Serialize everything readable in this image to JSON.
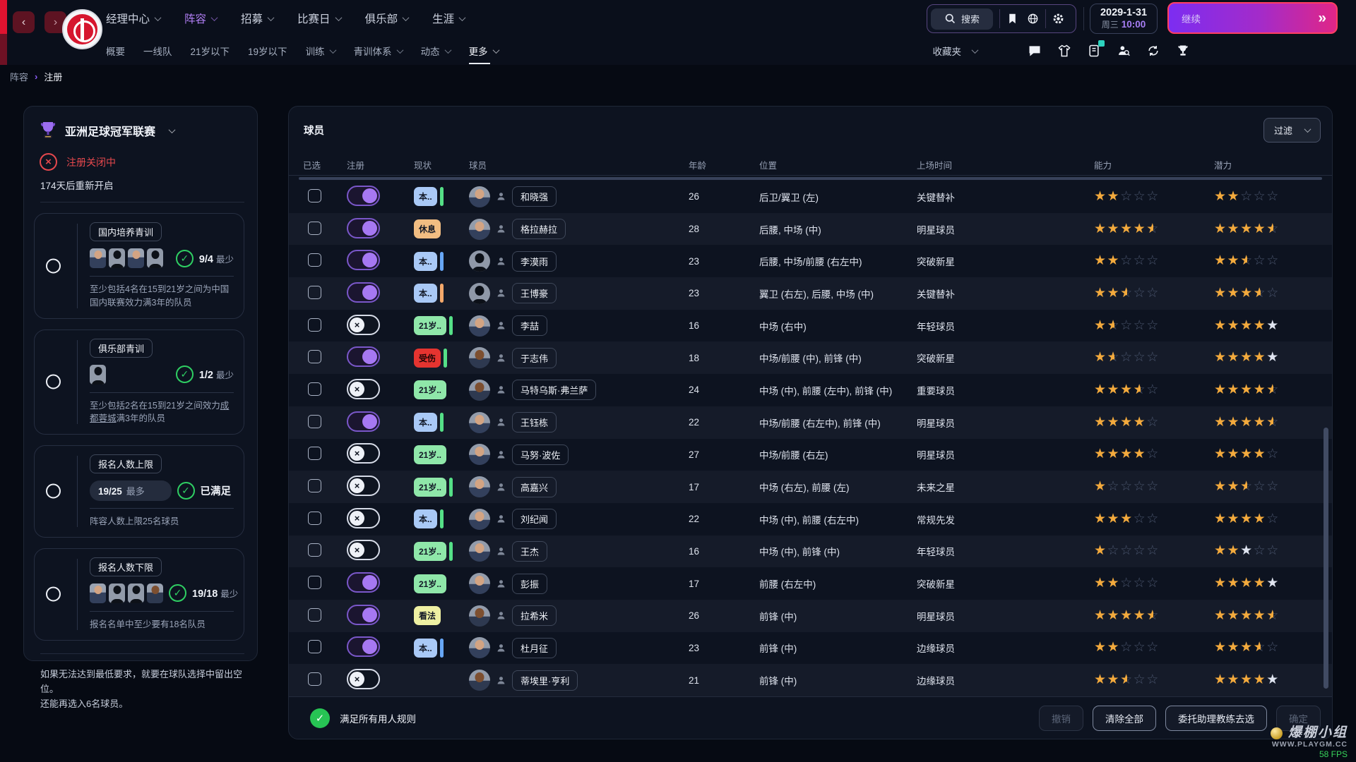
{
  "topbar": {
    "nav": [
      {
        "label": "经理中心"
      },
      {
        "label": "阵容",
        "active": true
      },
      {
        "label": "招募"
      },
      {
        "label": "比赛日"
      },
      {
        "label": "俱乐部"
      },
      {
        "label": "生涯"
      }
    ],
    "subnav": [
      {
        "label": "概要"
      },
      {
        "label": "一线队"
      },
      {
        "label": "21岁以下"
      },
      {
        "label": "19岁以下"
      },
      {
        "label": "训练",
        "chev": true
      },
      {
        "label": "青训体系",
        "chev": true
      },
      {
        "label": "动态",
        "chev": true
      },
      {
        "label": "更多",
        "chev": true,
        "active": true
      }
    ],
    "search_label": "搜索",
    "icons": [
      "search-icon",
      "bookmark-icon",
      "globe-icon",
      "gear-icon"
    ],
    "date": {
      "line1": "2029-1-31",
      "day": "周三",
      "time": "10:00"
    },
    "continue_label": "继续",
    "continue_glyph": "»",
    "favorites_label": "收藏夹",
    "corner_icons": [
      "chat-icon",
      "jersey-icon",
      "news-icon",
      "scout-search-icon",
      "sync-icon",
      "trophy-icon"
    ]
  },
  "breadcrumb": {
    "first": "阵容",
    "second": "注册"
  },
  "sidebar": {
    "competition": "亚洲足球冠军联赛",
    "closed_status": "注册关闭中",
    "reopen": "174天后重新开启",
    "rules": [
      {
        "label": "国内培养青训",
        "type": "avatars",
        "avatars": [
          "light",
          "silhouette",
          "light",
          "silhouette"
        ],
        "check_num": "9/4",
        "check_suffix": "最少",
        "desc": [
          {
            "text": "至少包括4名在15到21岁之间为中国国内联赛效力满3年的队员"
          }
        ]
      },
      {
        "label": "俱乐部青训",
        "type": "avatars",
        "avatars": [
          "silhouette"
        ],
        "check_num": "1/2",
        "check_suffix": "最少",
        "desc": [
          {
            "text": "至少包括2名在15到21岁之间效力"
          },
          {
            "text": "成都蓉城",
            "underline": true
          },
          {
            "text": "满3年的队员"
          }
        ]
      },
      {
        "label": "报名人数上限",
        "type": "badge",
        "badge_num": "19/25",
        "badge_suffix": "最多",
        "check_num": "已满足",
        "check_suffix": "",
        "desc": [
          {
            "text": "阵容人数上限25名球员"
          }
        ]
      },
      {
        "label": "报名人数下限",
        "type": "avatars",
        "avatars": [
          "light",
          "silhouette",
          "silhouette",
          "dark"
        ],
        "check_num": "19/18",
        "check_suffix": "最少",
        "desc": [
          {
            "text": "报名名单中至少要有18名队员"
          }
        ]
      }
    ],
    "note_line1": "如果无法达到最低要求，就要在球队选择中留出空位。",
    "note_line2": "还能再选入6名球员。"
  },
  "table": {
    "title": "球员",
    "filter_label": "过滤",
    "columns": [
      "已选",
      "注册",
      "现状",
      "球员",
      "年龄",
      "位置",
      "上场时间",
      "能力",
      "潜力"
    ],
    "rows": [
      {
        "name": "和晓强",
        "avatar": "light",
        "registered": true,
        "status": "本..",
        "status_type": "blue",
        "strip": "green",
        "age": "26",
        "position": "后卫/翼卫 (左)",
        "playtime": "关键替补",
        "ability": {
          "gold": 2
        },
        "potential": {
          "gold": 2
        }
      },
      {
        "name": "格拉赫拉",
        "avatar": "light",
        "registered": true,
        "status": "休息",
        "status_type": "orange",
        "strip": null,
        "age": "28",
        "position": "后腰, 中场 (中)",
        "playtime": "明星球员",
        "ability": {
          "gold": 4,
          "half": true
        },
        "potential": {
          "gold": 4,
          "half": true
        }
      },
      {
        "name": "李漠雨",
        "avatar": "silhouette",
        "registered": true,
        "status": "本..",
        "status_type": "blue",
        "strip": "blue",
        "age": "23",
        "position": "后腰, 中场/前腰 (右左中)",
        "playtime": "突破新星",
        "ability": {
          "gold": 2
        },
        "potential": {
          "gold": 2,
          "half": true
        }
      },
      {
        "name": "王博豪",
        "avatar": "silhouette",
        "registered": true,
        "status": "本..",
        "status_type": "blue",
        "strip": "orange",
        "age": "23",
        "position": "翼卫 (右左), 后腰, 中场 (中)",
        "playtime": "关键替补",
        "ability": {
          "gold": 2,
          "half": true
        },
        "potential": {
          "gold": 3,
          "half": true
        }
      },
      {
        "name": "李喆",
        "avatar": "light",
        "registered": false,
        "status": "21岁..",
        "status_type": "green",
        "strip": "green",
        "age": "16",
        "position": "中场 (右中)",
        "playtime": "年轻球员",
        "ability": {
          "gold": 1,
          "half": true
        },
        "potential": {
          "gold": 4,
          "silver": 1
        }
      },
      {
        "name": "于志伟",
        "avatar": "dark",
        "registered": true,
        "status": "受伤",
        "status_type": "red",
        "strip": "green",
        "age": "18",
        "position": "中场/前腰 (中), 前锋 (中)",
        "playtime": "突破新星",
        "ability": {
          "gold": 1,
          "half": true
        },
        "potential": {
          "gold": 4,
          "silver": 1
        }
      },
      {
        "name": "马特乌斯·弗兰萨",
        "avatar": "dark",
        "registered": false,
        "status": "21岁..",
        "status_type": "green",
        "strip": null,
        "age": "24",
        "position": "中场 (中), 前腰 (左中), 前锋 (中)",
        "playtime": "重要球员",
        "ability": {
          "gold": 3,
          "half": true
        },
        "potential": {
          "gold": 4,
          "half": true
        }
      },
      {
        "name": "王钰栋",
        "avatar": "light",
        "registered": true,
        "status": "本..",
        "status_type": "blue",
        "strip": "green",
        "age": "22",
        "position": "中场/前腰 (右左中), 前锋 (中)",
        "playtime": "明星球员",
        "ability": {
          "gold": 4
        },
        "potential": {
          "gold": 4,
          "half": true
        }
      },
      {
        "name": "马努·波佐",
        "avatar": "light",
        "registered": false,
        "status": "21岁..",
        "status_type": "green",
        "strip": null,
        "age": "27",
        "position": "中场/前腰 (右左)",
        "playtime": "明星球员",
        "ability": {
          "gold": 4
        },
        "potential": {
          "gold": 4
        }
      },
      {
        "name": "高嘉兴",
        "avatar": "light",
        "registered": false,
        "status": "21岁..",
        "status_type": "green",
        "strip": "green",
        "age": "17",
        "position": "中场 (右左), 前腰 (左)",
        "playtime": "未来之星",
        "ability": {
          "gold": 1
        },
        "potential": {
          "gold": 2,
          "half": true
        }
      },
      {
        "name": "刘纪闻",
        "avatar": "light",
        "registered": false,
        "status": "本..",
        "status_type": "blue",
        "strip": "green",
        "age": "22",
        "position": "中场 (中), 前腰 (右左中)",
        "playtime": "常规先发",
        "ability": {
          "gold": 3
        },
        "potential": {
          "gold": 4
        }
      },
      {
        "name": "王杰",
        "avatar": "light",
        "registered": false,
        "status": "21岁..",
        "status_type": "green",
        "strip": "green",
        "age": "16",
        "position": "中场 (中), 前锋 (中)",
        "playtime": "年轻球员",
        "ability": {
          "gold": 1
        },
        "potential": {
          "gold": 2,
          "silver": 1
        }
      },
      {
        "name": "彭振",
        "avatar": "light",
        "registered": true,
        "status": "21岁..",
        "status_type": "green",
        "strip": null,
        "age": "17",
        "position": "前腰 (右左中)",
        "playtime": "突破新星",
        "ability": {
          "gold": 2
        },
        "potential": {
          "gold": 4,
          "silver": 1
        }
      },
      {
        "name": "拉希米",
        "avatar": "dark",
        "registered": true,
        "status": "看法",
        "status_type": "yellow",
        "strip": null,
        "age": "26",
        "position": "前锋 (中)",
        "playtime": "明星球员",
        "ability": {
          "gold": 4,
          "half": true
        },
        "potential": {
          "gold": 4,
          "half": true
        }
      },
      {
        "name": "杜月征",
        "avatar": "light",
        "registered": true,
        "status": "本..",
        "status_type": "blue",
        "strip": "blue",
        "age": "23",
        "position": "前锋 (中)",
        "playtime": "边缘球员",
        "ability": {
          "gold": 2
        },
        "potential": {
          "gold": 3,
          "half": true
        }
      },
      {
        "name": "蒂埃里·亨利",
        "avatar": "dark",
        "registered": false,
        "status": null,
        "status_type": null,
        "strip": null,
        "age": "21",
        "position": "前锋 (中)",
        "playtime": "边缘球员",
        "ability": {
          "gold": 2,
          "half": true
        },
        "potential": {
          "gold": 4,
          "silver": 1
        }
      }
    ],
    "footer": {
      "message": "满足所有用人规则",
      "buttons": [
        {
          "label": "撤销",
          "enabled": false
        },
        {
          "label": "清除全部",
          "enabled": true
        },
        {
          "label": "委托助理教练去选",
          "enabled": true
        },
        {
          "label": "确定",
          "enabled": false
        }
      ]
    }
  },
  "watermark": {
    "group": "爆棚小组",
    "site": "WWW.PLAYGM.CC",
    "fps": "58 FPS"
  },
  "colors": {
    "accent_purple": "#a678f2",
    "continue_border": "#ff3e62",
    "star_gold": "#f3aa3d",
    "status_ok_green": "#27c454",
    "closed_red": "#e5484d",
    "badge_blue": "#a9c9f6",
    "badge_green": "#8fe7a9",
    "badge_orange": "#f1bd82",
    "badge_red": "#e53430",
    "badge_yellow": "#eef0a2"
  }
}
